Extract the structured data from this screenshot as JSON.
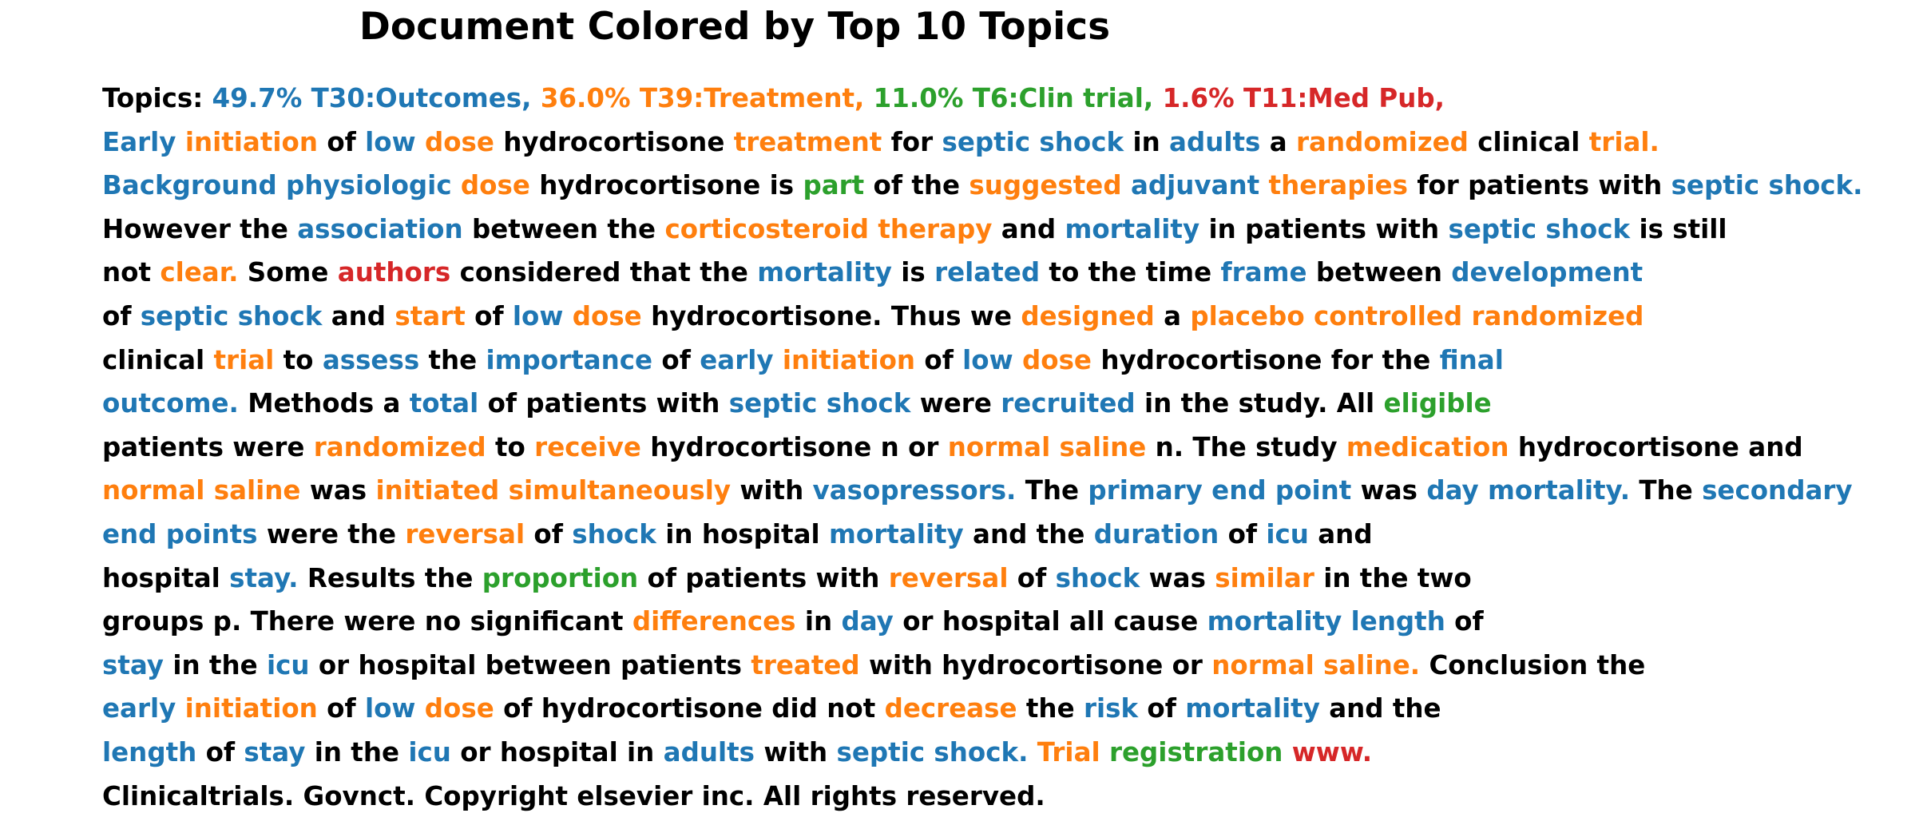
{
  "title": "Document Colored by Top 10 Topics",
  "topics_prefix": "Topics:",
  "topics": [
    {
      "label": "49.7% T30:Outcomes,",
      "color": "#1f77b4"
    },
    {
      "label": "36.0% T39:Treatment,",
      "color": "#ff7f0e"
    },
    {
      "label": "11.0% T6:Clin trial,",
      "color": "#2ca02c"
    },
    {
      "label": "1.6% T11:Med Pub,",
      "color": "#d62728"
    }
  ],
  "lines": [
    [
      [
        "Early",
        "blue"
      ],
      [
        "initiation",
        "orange"
      ],
      [
        "of",
        "none"
      ],
      [
        "low",
        "blue"
      ],
      [
        "dose",
        "orange"
      ],
      [
        "hydrocortisone",
        "none"
      ],
      [
        "treatment",
        "orange"
      ],
      [
        "for",
        "none"
      ],
      [
        "septic shock",
        "blue"
      ],
      [
        "in",
        "none"
      ],
      [
        "adults",
        "blue"
      ],
      [
        "a",
        "none"
      ],
      [
        "randomized",
        "orange"
      ],
      [
        "clinical",
        "none"
      ],
      [
        "trial.",
        "orange"
      ]
    ],
    [
      [
        "Background physiologic",
        "blue"
      ],
      [
        "dose",
        "orange"
      ],
      [
        "hydrocortisone is",
        "none"
      ],
      [
        "part",
        "green"
      ],
      [
        "of the",
        "none"
      ],
      [
        "suggested",
        "orange"
      ],
      [
        "adjuvant",
        "blue"
      ],
      [
        "therapies",
        "orange"
      ],
      [
        "for patients with",
        "none"
      ],
      [
        "septic shock.",
        "blue"
      ]
    ],
    [
      [
        "However the",
        "none"
      ],
      [
        "association",
        "blue"
      ],
      [
        "between the",
        "none"
      ],
      [
        "corticosteroid therapy",
        "orange"
      ],
      [
        "and",
        "none"
      ],
      [
        "mortality",
        "blue"
      ],
      [
        "in patients with",
        "none"
      ],
      [
        "septic shock",
        "blue"
      ],
      [
        "is still",
        "none"
      ]
    ],
    [
      [
        "not",
        "none"
      ],
      [
        "clear.",
        "orange"
      ],
      [
        "Some",
        "none"
      ],
      [
        "authors",
        "red"
      ],
      [
        "considered that the",
        "none"
      ],
      [
        "mortality",
        "blue"
      ],
      [
        "is",
        "none"
      ],
      [
        "related",
        "blue"
      ],
      [
        "to the time",
        "none"
      ],
      [
        "frame",
        "blue"
      ],
      [
        "between",
        "none"
      ],
      [
        "development",
        "blue"
      ]
    ],
    [
      [
        "of",
        "none"
      ],
      [
        "septic shock",
        "blue"
      ],
      [
        "and",
        "none"
      ],
      [
        "start",
        "orange"
      ],
      [
        "of",
        "none"
      ],
      [
        "low",
        "blue"
      ],
      [
        "dose",
        "orange"
      ],
      [
        "hydrocortisone. Thus we",
        "none"
      ],
      [
        "designed",
        "orange"
      ],
      [
        "a",
        "none"
      ],
      [
        "placebo controlled randomized",
        "orange"
      ]
    ],
    [
      [
        "clinical",
        "none"
      ],
      [
        "trial",
        "orange"
      ],
      [
        "to",
        "none"
      ],
      [
        "assess",
        "blue"
      ],
      [
        "the",
        "none"
      ],
      [
        "importance",
        "blue"
      ],
      [
        "of",
        "none"
      ],
      [
        "early",
        "blue"
      ],
      [
        "initiation",
        "orange"
      ],
      [
        "of",
        "none"
      ],
      [
        "low",
        "blue"
      ],
      [
        "dose",
        "orange"
      ],
      [
        "hydrocortisone for the",
        "none"
      ],
      [
        "final",
        "blue"
      ]
    ],
    [
      [
        "outcome.",
        "blue"
      ],
      [
        "Methods a",
        "none"
      ],
      [
        "total",
        "blue"
      ],
      [
        "of patients with",
        "none"
      ],
      [
        "septic shock",
        "blue"
      ],
      [
        "were",
        "none"
      ],
      [
        "recruited",
        "blue"
      ],
      [
        "in the study. All",
        "none"
      ],
      [
        "eligible",
        "green"
      ]
    ],
    [
      [
        "patients were",
        "none"
      ],
      [
        "randomized",
        "orange"
      ],
      [
        "to",
        "none"
      ],
      [
        "receive",
        "orange"
      ],
      [
        "hydrocortisone n or",
        "none"
      ],
      [
        "normal saline",
        "orange"
      ],
      [
        "n. The study",
        "none"
      ],
      [
        "medication",
        "orange"
      ],
      [
        "hydrocortisone and",
        "none"
      ]
    ],
    [
      [
        "normal saline",
        "orange"
      ],
      [
        "was",
        "none"
      ],
      [
        "initiated simultaneously",
        "orange"
      ],
      [
        "with",
        "none"
      ],
      [
        "vasopressors.",
        "blue"
      ],
      [
        "The",
        "none"
      ],
      [
        "primary end point",
        "blue"
      ],
      [
        "was",
        "none"
      ],
      [
        "day mortality.",
        "blue"
      ],
      [
        "The",
        "none"
      ],
      [
        "secondary",
        "blue"
      ]
    ],
    [
      [
        "end points",
        "blue"
      ],
      [
        "were the",
        "none"
      ],
      [
        "reversal",
        "orange"
      ],
      [
        "of",
        "none"
      ],
      [
        "shock",
        "blue"
      ],
      [
        "in hospital",
        "none"
      ],
      [
        "mortality",
        "blue"
      ],
      [
        "and the",
        "none"
      ],
      [
        "duration",
        "blue"
      ],
      [
        "of",
        "none"
      ],
      [
        "icu",
        "blue"
      ],
      [
        "and",
        "none"
      ]
    ],
    [
      [
        "hospital",
        "none"
      ],
      [
        "stay.",
        "blue"
      ],
      [
        "Results the",
        "none"
      ],
      [
        "proportion",
        "green"
      ],
      [
        "of patients with",
        "none"
      ],
      [
        "reversal",
        "orange"
      ],
      [
        "of",
        "none"
      ],
      [
        "shock",
        "blue"
      ],
      [
        "was",
        "none"
      ],
      [
        "similar",
        "orange"
      ],
      [
        "in the two",
        "none"
      ]
    ],
    [
      [
        "groups p. There were no significant",
        "none"
      ],
      [
        "differences",
        "orange"
      ],
      [
        "in",
        "none"
      ],
      [
        "day",
        "blue"
      ],
      [
        "or hospital all cause",
        "none"
      ],
      [
        "mortality length",
        "blue"
      ],
      [
        "of",
        "none"
      ]
    ],
    [
      [
        "stay",
        "blue"
      ],
      [
        "in the",
        "none"
      ],
      [
        "icu",
        "blue"
      ],
      [
        "or hospital between patients",
        "none"
      ],
      [
        "treated",
        "orange"
      ],
      [
        "with hydrocortisone or",
        "none"
      ],
      [
        "normal saline.",
        "orange"
      ],
      [
        "Conclusion the",
        "none"
      ]
    ],
    [
      [
        "early",
        "blue"
      ],
      [
        "initiation",
        "orange"
      ],
      [
        "of",
        "none"
      ],
      [
        "low",
        "blue"
      ],
      [
        "dose",
        "orange"
      ],
      [
        "of hydrocortisone did not",
        "none"
      ],
      [
        "decrease",
        "orange"
      ],
      [
        "the",
        "none"
      ],
      [
        "risk",
        "blue"
      ],
      [
        "of",
        "none"
      ],
      [
        "mortality",
        "blue"
      ],
      [
        "and the",
        "none"
      ]
    ],
    [
      [
        "length",
        "blue"
      ],
      [
        "of",
        "none"
      ],
      [
        "stay",
        "blue"
      ],
      [
        "in the",
        "none"
      ],
      [
        "icu",
        "blue"
      ],
      [
        "or hospital in",
        "none"
      ],
      [
        "adults",
        "blue"
      ],
      [
        "with",
        "none"
      ],
      [
        "septic shock.",
        "blue"
      ],
      [
        "Trial",
        "orange"
      ],
      [
        "registration",
        "green"
      ],
      [
        "www.",
        "red"
      ]
    ],
    [
      [
        "Clinicaltrials. Govnct. Copyright elsevier inc. All rights reserved.",
        "none"
      ]
    ]
  ]
}
